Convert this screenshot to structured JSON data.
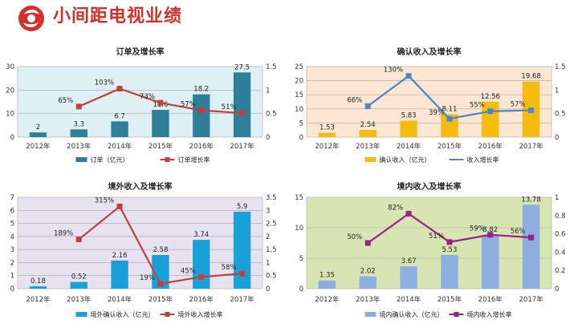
{
  "page": {
    "title": "小间距电视业绩"
  },
  "colors": {
    "brand": "#d3302b"
  },
  "chart_data": [
    {
      "type": "bar",
      "title": "订单及增长率",
      "categories": [
        "2012年",
        "2013年",
        "2014年",
        "2015年",
        "2016年",
        "2017年"
      ],
      "ylim": [
        0,
        30
      ],
      "yticks": [
        "0",
        "10",
        "20",
        "30"
      ],
      "y2lim": [
        0,
        1.5
      ],
      "y2ticks": [
        "0",
        "0.5",
        "1",
        "1.5"
      ],
      "series": [
        {
          "name": "订单（亿元）",
          "kind": "bar",
          "values": [
            2,
            3.3,
            6.7,
            11.6,
            18.2,
            27.5
          ],
          "labels": [
            "2",
            "3.3",
            "6.7",
            "11.6",
            "18.2",
            "27.5"
          ]
        },
        {
          "name": "订单增长率",
          "kind": "line",
          "values": [
            null,
            0.65,
            1.03,
            0.73,
            0.57,
            0.51
          ],
          "labels": [
            "",
            "65%",
            "103%",
            "73%",
            "57%",
            "51%"
          ]
        }
      ],
      "colors": {
        "bar": "#2e7f9a",
        "line": "#c0403b",
        "bg": "#dff0f5"
      }
    },
    {
      "type": "bar",
      "title": "确认收入及增长率",
      "categories": [
        "2012年",
        "2013年",
        "2014年",
        "2015年",
        "2016年",
        "2017年"
      ],
      "ylim": [
        0,
        25
      ],
      "yticks": [
        "0",
        "5",
        "10",
        "15",
        "20",
        "25"
      ],
      "y2lim": [
        0,
        1.5
      ],
      "y2ticks": [
        "0",
        "0.5",
        "1",
        "1.5"
      ],
      "series": [
        {
          "name": "确认收入（亿元）",
          "kind": "bar",
          "values": [
            1.53,
            2.54,
            5.83,
            8.11,
            12.56,
            19.68
          ],
          "labels": [
            "1.53",
            "2.54",
            "5.83",
            "8.11",
            "12.56",
            "19.68"
          ]
        },
        {
          "name": "收入增长率",
          "kind": "line",
          "values": [
            null,
            0.66,
            1.3,
            0.39,
            0.55,
            0.57
          ],
          "labels": [
            "",
            "66%",
            "130%",
            "39%",
            "55%",
            "57%"
          ]
        }
      ],
      "colors": {
        "bar": "#f5bc0f",
        "line": "#4a86c8",
        "bg": "#fde7d2"
      }
    },
    {
      "type": "bar",
      "title": "境外收入及增长率",
      "categories": [
        "2012年",
        "2013年",
        "2014年",
        "2015年",
        "2016年",
        "2017年"
      ],
      "ylim": [
        0,
        7
      ],
      "yticks": [
        "0",
        "1",
        "2",
        "3",
        "4",
        "5",
        "6",
        "7"
      ],
      "y2lim": [
        0,
        3.5
      ],
      "y2ticks": [
        "0",
        "0.5",
        "1",
        "1.5",
        "2",
        "2.5",
        "3",
        "3.5"
      ],
      "series": [
        {
          "name": "境外确认收入（亿元）",
          "kind": "bar",
          "values": [
            0.18,
            0.52,
            2.16,
            2.58,
            3.74,
            5.9
          ],
          "labels": [
            "0.18",
            "0.52",
            "2.16",
            "2.58",
            "3.74",
            "5.9"
          ]
        },
        {
          "name": "境外收入增长率",
          "kind": "line",
          "values": [
            null,
            1.89,
            3.15,
            0.19,
            0.45,
            0.58
          ],
          "labels": [
            "",
            "189%",
            "315%",
            "19%",
            "45%",
            "58%"
          ]
        }
      ],
      "colors": {
        "bar": "#1aa0d8",
        "line": "#c0403b",
        "bg": "#e7e2f0"
      }
    },
    {
      "type": "bar",
      "title": "境内收入及增长率",
      "categories": [
        "2012年",
        "2013年",
        "2014年",
        "2015年",
        "2016年",
        "2017年"
      ],
      "ylim": [
        0,
        15
      ],
      "yticks": [
        "0",
        "5",
        "10",
        "15"
      ],
      "y2lim": [
        0,
        1
      ],
      "y2ticks": [
        "0",
        "0.2",
        "0.4",
        "0.6",
        "0.8",
        "1"
      ],
      "series": [
        {
          "name": "境内确认收入（亿元）",
          "kind": "bar",
          "values": [
            1.35,
            2.02,
            3.67,
            5.53,
            8.82,
            13.78
          ],
          "labels": [
            "1.35",
            "2.02",
            "3.67",
            "5.53",
            "8.82",
            "13.78"
          ]
        },
        {
          "name": "境内收入增长率",
          "kind": "line",
          "values": [
            null,
            0.5,
            0.82,
            0.51,
            0.59,
            0.56
          ],
          "labels": [
            "",
            "50%",
            "82%",
            "51%",
            "59%",
            "56%"
          ]
        }
      ],
      "colors": {
        "bar": "#8eaedf",
        "line": "#9a1f8a",
        "bg": "#d6e5b2"
      }
    }
  ]
}
